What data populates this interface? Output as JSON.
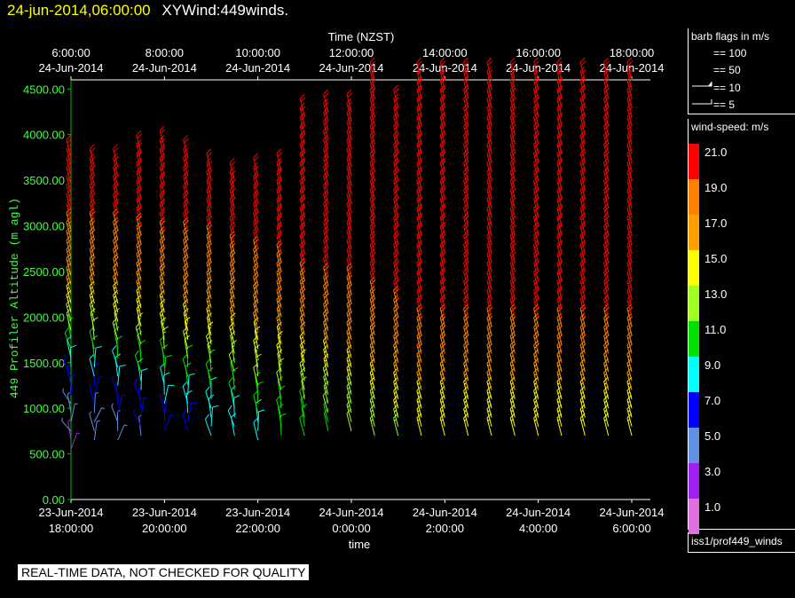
{
  "header": {
    "datetime": "24-jun-2014,06:00:00",
    "product": "XYWind:449winds."
  },
  "chart_data": {
    "type": "wind-barb",
    "top_axis_title": "Time (NZST)",
    "top_ticks": [
      {
        "time": "6:00:00",
        "date": "24-Jun-2014"
      },
      {
        "time": "8:00:00",
        "date": "24-Jun-2014"
      },
      {
        "time": "10:00:00",
        "date": "24-Jun-2014"
      },
      {
        "time": "12:00:00",
        "date": "24-Jun-2014"
      },
      {
        "time": "14:00:00",
        "date": "24-Jun-2014"
      },
      {
        "time": "16:00:00",
        "date": "24-Jun-2014"
      },
      {
        "time": "18:00:00",
        "date": "24-Jun-2014"
      }
    ],
    "bottom_ticks": [
      {
        "date": "23-Jun-2014",
        "time": "18:00:00"
      },
      {
        "date": "23-Jun-2014",
        "time": "20:00:00"
      },
      {
        "date": "23-Jun-2014",
        "time": "22:00:00"
      },
      {
        "date": "24-Jun-2014",
        "time": "0:00:00"
      },
      {
        "date": "24-Jun-2014",
        "time": "2:00:00"
      },
      {
        "date": "24-Jun-2014",
        "time": "4:00:00"
      },
      {
        "date": "24-Jun-2014",
        "time": "6:00:00"
      }
    ],
    "xlabel": "time",
    "ylabel": "449 Profiler Altitude (m agl)",
    "ylim": [
      0,
      4600
    ],
    "y_ticks": [
      "0.00",
      "500.00",
      "1000.00",
      "1500.00",
      "2000.00",
      "2500.00",
      "3000.00",
      "3500.00",
      "4000.00",
      "4500.00"
    ],
    "x_hours_range": [
      0,
      12
    ],
    "profile_times_hours": [
      0,
      0.5,
      1,
      1.5,
      2,
      2.5,
      3,
      3.5,
      4,
      4.5,
      5,
      5.5,
      6,
      6.5,
      7,
      7.5,
      8,
      8.5,
      9,
      9.5,
      10,
      10.5,
      11,
      11.5,
      12
    ],
    "profile_tops_m": [
      3750,
      3650,
      3650,
      3850,
      3850,
      3800,
      3600,
      3550,
      3550,
      3650,
      4200,
      4300,
      4300,
      4600,
      4350,
      4600,
      4600,
      4600,
      4600,
      4600,
      4600,
      4600,
      4600,
      4600,
      4600
    ],
    "profile_bottoms_m": [
      550,
      650,
      650,
      700,
      750,
      750,
      700,
      700,
      650,
      700,
      700,
      750,
      750,
      700,
      700,
      700,
      700,
      700,
      700,
      700,
      700,
      700,
      700,
      700,
      700
    ],
    "speed_profile": {
      "altitude_m": [
        500,
        1000,
        1500,
        2000,
        2500,
        3000,
        3500,
        4600
      ],
      "speed_early_ms": [
        3,
        5,
        9,
        14,
        18,
        20,
        21,
        21
      ],
      "speed_late_ms": [
        14,
        15,
        18,
        20,
        21,
        21,
        21,
        21
      ]
    },
    "barb_spacing_m": 100
  },
  "legend_barbs": {
    "title": "barb flags in m/s",
    "items": [
      "== 100",
      "== 50",
      "== 10",
      "== 5"
    ]
  },
  "legend_speed": {
    "title": "wind-speed: m/s",
    "items": [
      {
        "label": "21.0",
        "color": "#ff0000"
      },
      {
        "label": "19.0",
        "color": "#ff8000"
      },
      {
        "label": "17.0",
        "color": "#ffa000"
      },
      {
        "label": "15.0",
        "color": "#ffff00"
      },
      {
        "label": "13.0",
        "color": "#a0ff20"
      },
      {
        "label": "11.0",
        "color": "#00e000"
      },
      {
        "label": "9.0",
        "color": "#00ffff"
      },
      {
        "label": "7.0",
        "color": "#0000ff"
      },
      {
        "label": "5.0",
        "color": "#6090e0"
      },
      {
        "label": "3.0",
        "color": "#a020f0"
      },
      {
        "label": "1.0",
        "color": "#e070e0"
      }
    ]
  },
  "source": "iss1/prof449_winds",
  "warning": "REAL-TIME DATA, NOT CHECKED FOR QUALITY",
  "colors": {
    "axis": "#00c000",
    "label": "#40ff40",
    "bg": "#000000"
  }
}
